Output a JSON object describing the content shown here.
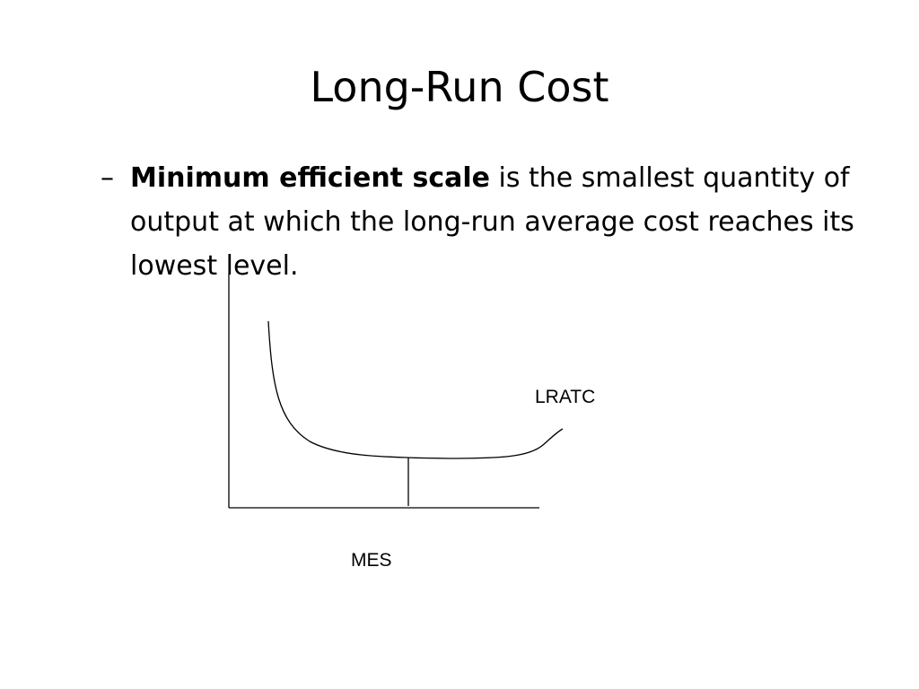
{
  "slide": {
    "title": "Long-Run Cost",
    "bullet": {
      "marker": "–",
      "bold_term": "Minimum efficient scale",
      "rest_text": " is the smallest quantity of output at which the long-run average cost reaches its lowest level."
    }
  },
  "diagram": {
    "curve_label": "LRATC",
    "mes_label": "MES",
    "line_color": "#000000"
  }
}
